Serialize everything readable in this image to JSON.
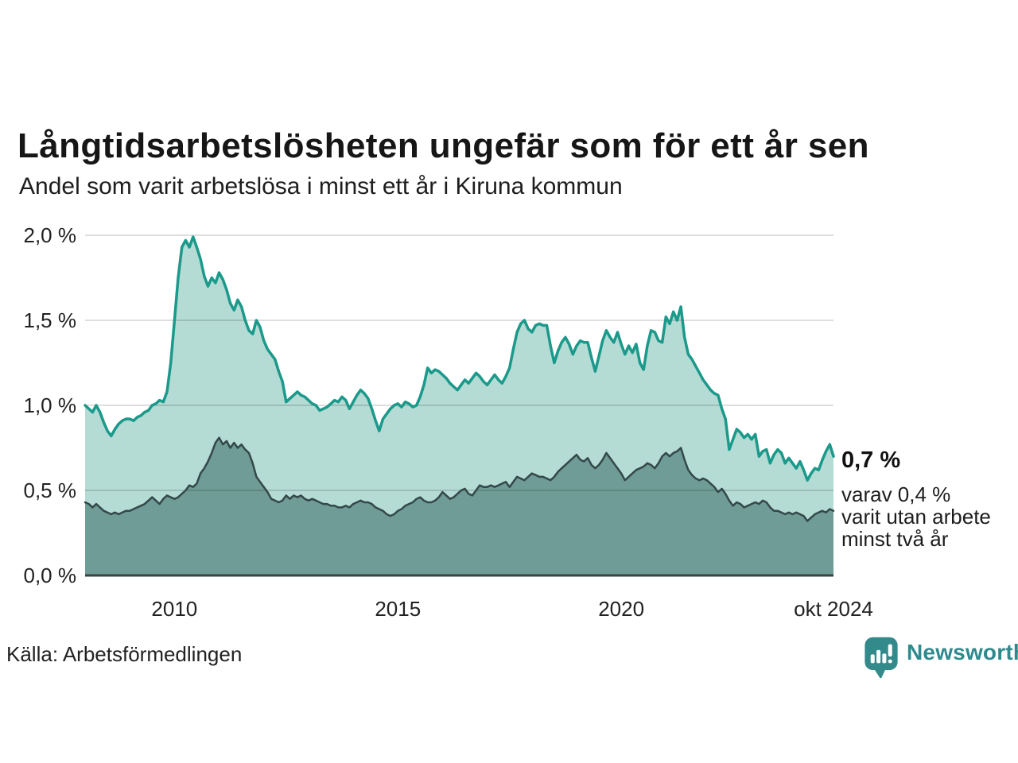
{
  "title": "Långtidsarbetslösheten ungefär som för ett år sen",
  "subtitle": "Andel som varit arbetslösa i minst ett år i Kiruna kommun",
  "source": "Källa: Arbetsförmedlingen",
  "annotation": {
    "headline": "0,7 %",
    "lines": [
      "varav 0,4 %",
      "varit utan arbete",
      "minst två år"
    ]
  },
  "logo": {
    "text": "Newsworthy",
    "icon": "bar-chart-speech-bubble-icon",
    "brand_color": "#2e8a8c"
  },
  "colors": {
    "series1_line": "#1b998a",
    "series1_fill": "#b4dbd4",
    "series2_line": "#34484a",
    "series2_fill": "#6f9c96",
    "gridline": "rgba(0,0,0,0.13)",
    "baseline": "#3a4446",
    "text": "#222222"
  },
  "chart_data": {
    "type": "area",
    "title": "Långtidsarbetslösheten ungefär som för ett år sen",
    "subtitle": "Andel som varit arbetslösa i minst ett år i Kiruna kommun",
    "unit": "%",
    "x_start_year": 2008.0,
    "x_end_year": 2024.75,
    "x_step_months": 1,
    "ylim": [
      0,
      2.0
    ],
    "grid": true,
    "yticks": [
      {
        "value": 2.0,
        "label": "2,0 %"
      },
      {
        "value": 1.5,
        "label": "1,5 %"
      },
      {
        "value": 1.0,
        "label": "1,0 %"
      },
      {
        "value": 0.5,
        "label": "0,5 %"
      },
      {
        "value": 0.0,
        "label": "0,0 %"
      }
    ],
    "xticks": [
      {
        "year": 2010.0,
        "label": "2010"
      },
      {
        "year": 2015.0,
        "label": "2015"
      },
      {
        "year": 2020.0,
        "label": "2020"
      },
      {
        "year": 2024.75,
        "label": "okt 2024"
      }
    ],
    "series": [
      {
        "name": "Andel som varit arbetslösa i minst ett år",
        "latest_label": "0,7 %",
        "line_color": "#1b998a",
        "fill_color": "#b4dbd4",
        "values": [
          1.0,
          0.98,
          0.96,
          1.0,
          0.96,
          0.9,
          0.85,
          0.82,
          0.86,
          0.89,
          0.91,
          0.92,
          0.92,
          0.91,
          0.93,
          0.94,
          0.96,
          0.97,
          1.0,
          1.01,
          1.03,
          1.02,
          1.08,
          1.25,
          1.5,
          1.75,
          1.93,
          1.97,
          1.93,
          1.99,
          1.93,
          1.86,
          1.76,
          1.7,
          1.75,
          1.72,
          1.78,
          1.74,
          1.68,
          1.6,
          1.56,
          1.62,
          1.58,
          1.5,
          1.44,
          1.42,
          1.5,
          1.46,
          1.38,
          1.33,
          1.3,
          1.27,
          1.2,
          1.14,
          1.02,
          1.04,
          1.06,
          1.08,
          1.06,
          1.05,
          1.03,
          1.01,
          1.0,
          0.97,
          0.98,
          0.99,
          1.01,
          1.03,
          1.02,
          1.05,
          1.03,
          0.98,
          1.02,
          1.06,
          1.09,
          1.07,
          1.04,
          0.98,
          0.91,
          0.85,
          0.92,
          0.95,
          0.98,
          1.0,
          1.01,
          0.99,
          1.02,
          1.01,
          0.99,
          1.0,
          1.05,
          1.12,
          1.22,
          1.19,
          1.21,
          1.2,
          1.18,
          1.16,
          1.13,
          1.11,
          1.09,
          1.12,
          1.15,
          1.13,
          1.16,
          1.19,
          1.17,
          1.14,
          1.12,
          1.15,
          1.18,
          1.15,
          1.13,
          1.17,
          1.22,
          1.33,
          1.43,
          1.48,
          1.5,
          1.45,
          1.43,
          1.47,
          1.48,
          1.47,
          1.47,
          1.35,
          1.25,
          1.32,
          1.37,
          1.4,
          1.36,
          1.3,
          1.35,
          1.38,
          1.37,
          1.37,
          1.28,
          1.2,
          1.29,
          1.38,
          1.44,
          1.4,
          1.37,
          1.43,
          1.36,
          1.3,
          1.35,
          1.31,
          1.36,
          1.25,
          1.21,
          1.35,
          1.44,
          1.43,
          1.38,
          1.37,
          1.52,
          1.48,
          1.55,
          1.5,
          1.58,
          1.4,
          1.3,
          1.27,
          1.23,
          1.19,
          1.15,
          1.12,
          1.09,
          1.07,
          1.06,
          0.98,
          0.92,
          0.74,
          0.8,
          0.86,
          0.84,
          0.81,
          0.83,
          0.8,
          0.83,
          0.7,
          0.73,
          0.74,
          0.66,
          0.71,
          0.74,
          0.72,
          0.66,
          0.69,
          0.66,
          0.63,
          0.67,
          0.62,
          0.56,
          0.6,
          0.63,
          0.62,
          0.68,
          0.73,
          0.77,
          0.7
        ]
      },
      {
        "name": "varav varit utan arbete minst två år",
        "latest_label": "0,4 %",
        "line_color": "#34484a",
        "fill_color": "#6f9c96",
        "values": [
          0.43,
          0.42,
          0.4,
          0.42,
          0.4,
          0.38,
          0.37,
          0.36,
          0.37,
          0.36,
          0.37,
          0.38,
          0.38,
          0.39,
          0.4,
          0.41,
          0.42,
          0.44,
          0.46,
          0.44,
          0.42,
          0.45,
          0.47,
          0.46,
          0.45,
          0.46,
          0.48,
          0.5,
          0.53,
          0.52,
          0.54,
          0.6,
          0.63,
          0.67,
          0.72,
          0.78,
          0.81,
          0.77,
          0.79,
          0.75,
          0.78,
          0.75,
          0.77,
          0.74,
          0.72,
          0.66,
          0.58,
          0.55,
          0.52,
          0.49,
          0.45,
          0.44,
          0.43,
          0.44,
          0.47,
          0.45,
          0.47,
          0.46,
          0.47,
          0.45,
          0.44,
          0.45,
          0.44,
          0.43,
          0.42,
          0.42,
          0.41,
          0.41,
          0.4,
          0.4,
          0.41,
          0.4,
          0.42,
          0.43,
          0.44,
          0.43,
          0.43,
          0.42,
          0.4,
          0.39,
          0.38,
          0.36,
          0.35,
          0.36,
          0.38,
          0.39,
          0.41,
          0.42,
          0.43,
          0.45,
          0.46,
          0.44,
          0.43,
          0.43,
          0.44,
          0.46,
          0.49,
          0.47,
          0.45,
          0.46,
          0.48,
          0.5,
          0.51,
          0.48,
          0.47,
          0.5,
          0.53,
          0.52,
          0.52,
          0.53,
          0.52,
          0.53,
          0.54,
          0.55,
          0.52,
          0.55,
          0.58,
          0.57,
          0.56,
          0.58,
          0.6,
          0.59,
          0.58,
          0.58,
          0.57,
          0.56,
          0.58,
          0.61,
          0.63,
          0.65,
          0.67,
          0.69,
          0.71,
          0.68,
          0.67,
          0.69,
          0.65,
          0.63,
          0.65,
          0.68,
          0.72,
          0.69,
          0.66,
          0.63,
          0.6,
          0.56,
          0.58,
          0.6,
          0.62,
          0.63,
          0.64,
          0.66,
          0.65,
          0.63,
          0.66,
          0.7,
          0.72,
          0.7,
          0.72,
          0.73,
          0.75,
          0.68,
          0.62,
          0.59,
          0.57,
          0.56,
          0.57,
          0.56,
          0.54,
          0.52,
          0.49,
          0.51,
          0.48,
          0.44,
          0.41,
          0.43,
          0.42,
          0.4,
          0.41,
          0.42,
          0.43,
          0.42,
          0.44,
          0.43,
          0.4,
          0.38,
          0.38,
          0.37,
          0.36,
          0.37,
          0.36,
          0.37,
          0.36,
          0.35,
          0.32,
          0.34,
          0.36,
          0.37,
          0.38,
          0.37,
          0.39,
          0.38
        ]
      }
    ]
  }
}
